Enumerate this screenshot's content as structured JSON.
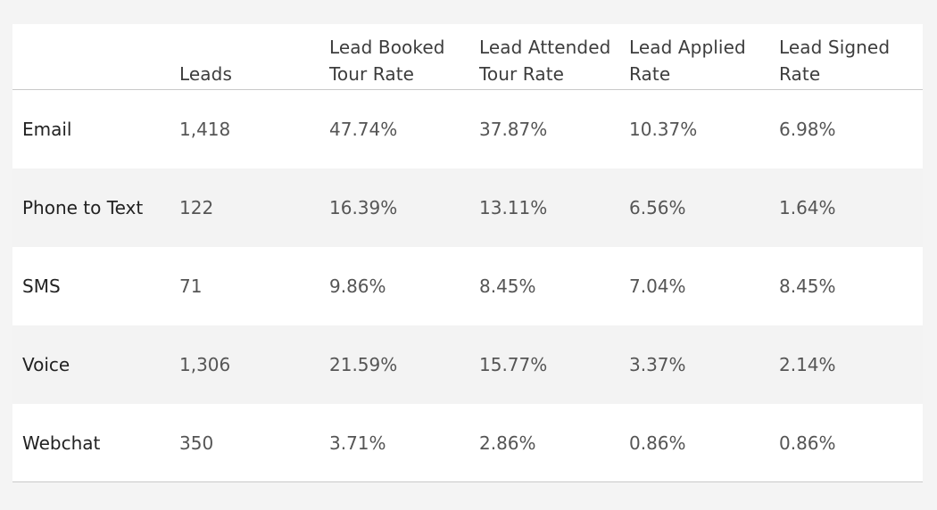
{
  "chart_data": {
    "type": "table",
    "columns": [
      "",
      "Leads",
      "Lead Booked\nTour Rate",
      "Lead Attended\nTour Rate",
      "Lead Applied\nRate",
      "Lead Signed\nRate"
    ],
    "rows": [
      {
        "channel": "Email",
        "leads": "1,418",
        "booked": "47.74%",
        "attended": "37.87%",
        "applied": "10.37%",
        "signed": "6.98%"
      },
      {
        "channel": "Phone to Text",
        "leads": "122",
        "booked": "16.39%",
        "attended": "13.11%",
        "applied": "6.56%",
        "signed": "1.64%"
      },
      {
        "channel": "SMS",
        "leads": "71",
        "booked": "9.86%",
        "attended": "8.45%",
        "applied": "7.04%",
        "signed": "8.45%"
      },
      {
        "channel": "Voice",
        "leads": "1,306",
        "booked": "21.59%",
        "attended": "15.77%",
        "applied": "3.37%",
        "signed": "2.14%"
      },
      {
        "channel": "Webchat",
        "leads": "350",
        "booked": "3.71%",
        "attended": "2.86%",
        "applied": "0.86%",
        "signed": "0.86%"
      }
    ]
  },
  "colors": {
    "background": "#f4f4f4",
    "card": "#ffffff",
    "alt_row": "#f3f3f3",
    "divider": "#c9c9c9",
    "header_text": "#3d3d3d",
    "cell_text": "#555555"
  }
}
